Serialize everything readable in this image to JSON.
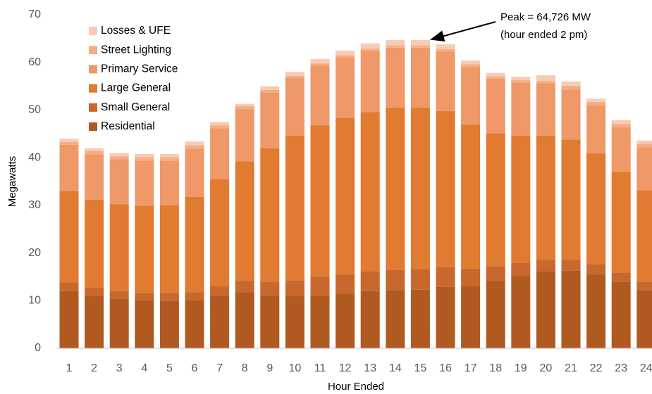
{
  "chart_data": {
    "type": "stacked_bar",
    "x_label": "Hour Ended",
    "y_label": "Megawatts",
    "annotation": {
      "lines": [
        "Peak = 64,726 MW",
        "(hour ended 2 pm)"
      ]
    },
    "categories": [
      "1",
      "2",
      "3",
      "4",
      "5",
      "6",
      "7",
      "8",
      "9",
      "10",
      "11",
      "12",
      "13",
      "14",
      "15",
      "16",
      "17",
      "18",
      "19",
      "20",
      "21",
      "22",
      "23",
      "24"
    ],
    "series": [
      {
        "name": "Residential",
        "color": "#b05a22",
        "values": [
          12,
          11,
          10.4,
          10.1,
          10,
          10.1,
          11.1,
          11.8,
          11.1,
          11,
          11.1,
          11.5,
          12,
          12.2,
          12.3,
          12.9,
          13,
          14.1,
          15.2,
          16.1,
          16.3,
          15.5,
          14,
          12.1
        ]
      },
      {
        "name": "Small General",
        "color": "#c8682c",
        "values": [
          1.8,
          1.7,
          1.6,
          1.6,
          1.6,
          1.7,
          1.9,
          2.3,
          2.9,
          3.3,
          3.9,
          4,
          4.2,
          4.2,
          4.3,
          4.1,
          3.7,
          3.1,
          2.8,
          2.5,
          2.3,
          2.2,
          1.9,
          1.9
        ]
      },
      {
        "name": "Large General",
        "color": "#e07b31",
        "values": [
          19.2,
          18.5,
          18.2,
          18.2,
          18.4,
          20,
          22.5,
          25.1,
          28,
          30.3,
          31.8,
          32.9,
          33.4,
          34.1,
          33.9,
          32.8,
          30.3,
          27.9,
          26.6,
          26,
          25.2,
          23.2,
          21.1,
          19.2
        ]
      },
      {
        "name": "Primary Service",
        "color": "#ef9868",
        "values": [
          9.7,
          9.5,
          9.5,
          9.5,
          9.4,
          10.1,
          10.7,
          11,
          11.7,
          12.1,
          12.5,
          12.6,
          12.8,
          12.6,
          12.6,
          12.5,
          12,
          11.5,
          11.2,
          11,
          10.5,
          10.1,
          9.4,
          9
        ]
      },
      {
        "name": "Street Lighting",
        "color": "#f3ae86",
        "values": [
          0.6,
          0.7,
          0.6,
          0.7,
          0.7,
          0.7,
          0.6,
          0.6,
          0.5,
          0.5,
          0.5,
          0.5,
          0.5,
          0.5,
          0.5,
          0.5,
          0.6,
          0.5,
          0.5,
          0.5,
          0.8,
          0.7,
          0.7,
          0.7
        ]
      },
      {
        "name": "Losses & UFE",
        "color": "#f8cbb3",
        "values": [
          0.7,
          0.6,
          0.7,
          0.7,
          0.7,
          0.8,
          0.7,
          0.5,
          0.8,
          0.8,
          0.9,
          1,
          1.1,
          1.1,
          1.1,
          1,
          0.8,
          0.7,
          0.7,
          1.2,
          0.9,
          0.7,
          0.8,
          0.7
        ]
      }
    ],
    "ylim": [
      0,
      70
    ],
    "yticks": [
      0,
      10,
      20,
      30,
      40,
      50,
      60,
      70
    ],
    "grid": false,
    "legend": "top-left"
  }
}
